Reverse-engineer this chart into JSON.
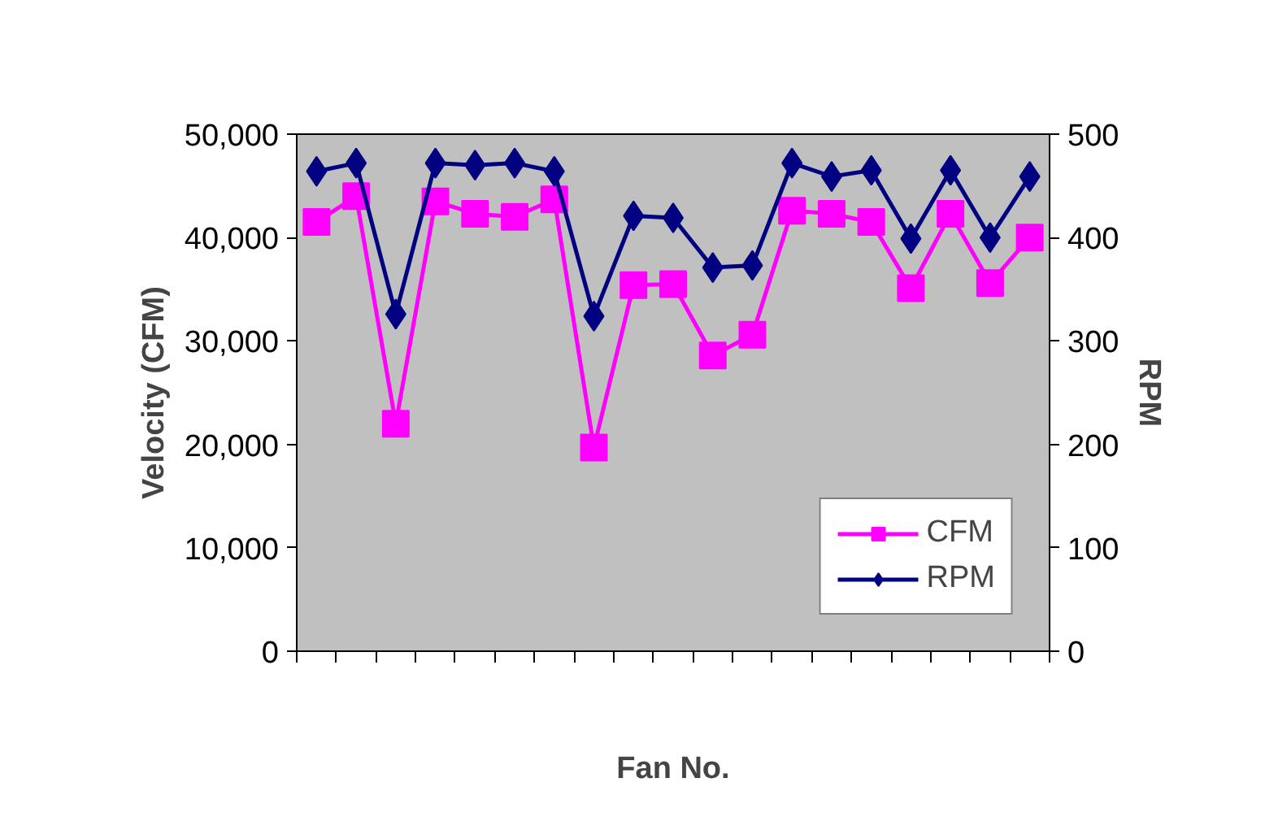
{
  "chart_data": {
    "type": "line",
    "xlabel": "Fan No.",
    "ylabel": "Velocity (CFM)",
    "y2label": "RPM",
    "categories": [
      null,
      null,
      null,
      null,
      null,
      null,
      null,
      null,
      null,
      null,
      null,
      null,
      null,
      null,
      null,
      null,
      null,
      null,
      null
    ],
    "series": [
      {
        "name": "CFM",
        "color": "#ff00ff",
        "marker": "square",
        "values": [
          41500,
          44000,
          22000,
          43500,
          42300,
          42000,
          43700,
          19700,
          35400,
          35500,
          28600,
          30600,
          42600,
          42300,
          41500,
          35100,
          42300,
          35600,
          40000
        ]
      },
      {
        "name": "RPM",
        "color": "#000080",
        "marker": "diamond",
        "axis": "y2",
        "values": [
          464,
          472,
          326,
          472,
          470,
          472,
          464,
          324,
          421,
          419,
          371,
          373,
          472,
          459,
          465,
          399,
          465,
          400,
          459
        ]
      }
    ],
    "ylim": [
      0,
      50000
    ],
    "yticks": [
      0,
      {
        "value": 10000,
        "label": "10,000"
      },
      {
        "value": 20000,
        "label": "20,000"
      },
      {
        "value": 30000,
        "label": "30,000"
      },
      {
        "value": 40000,
        "label": "40,000"
      },
      {
        "value": 50000,
        "label": "50,000"
      }
    ],
    "y2lim": [
      0,
      500
    ],
    "y2ticks": [
      0,
      100,
      200,
      300,
      400,
      500
    ],
    "grid": false,
    "legend": "bottom right",
    "line_style": "solid"
  }
}
